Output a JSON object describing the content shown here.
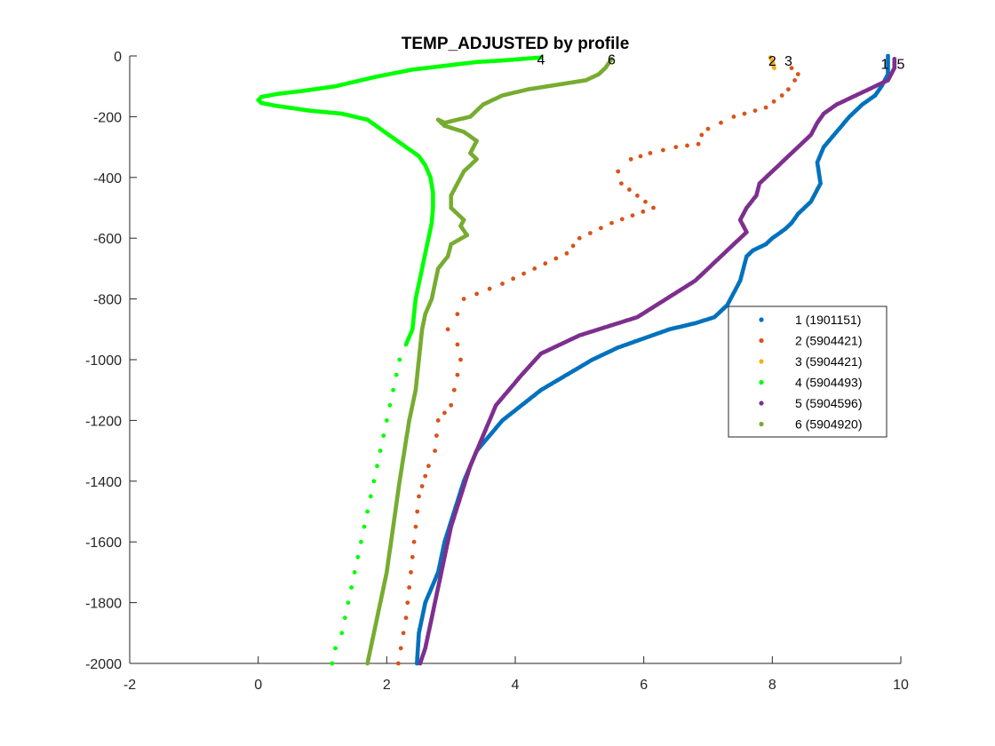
{
  "chart_data": {
    "type": "scatter",
    "title": "TEMP_ADJUSTED by profile",
    "xlabel": "",
    "ylabel": "",
    "xlim": [
      -2,
      10
    ],
    "ylim": [
      -2000,
      0
    ],
    "xticks": [
      -2,
      0,
      2,
      4,
      6,
      8,
      10
    ],
    "yticks": [
      0,
      -200,
      -400,
      -600,
      -800,
      -1000,
      -1200,
      -1400,
      -1600,
      -1800,
      -2000
    ],
    "grid": false,
    "legend_location": "east",
    "series": [
      {
        "name": "1 (1901151)",
        "label": "1",
        "color": "#0072BD",
        "label_pos": [
          9.75,
          -25
        ],
        "x": [
          9.8,
          9.8,
          9.8,
          9.7,
          9.6,
          9.4,
          9.2,
          9.0,
          8.8,
          8.7,
          8.75,
          8.6,
          8.5,
          8.4,
          8.3,
          8.2,
          8.0,
          7.9,
          7.7,
          7.6,
          7.55,
          7.5,
          7.4,
          7.3,
          7.1,
          6.8,
          6.4,
          6.0,
          5.6,
          5.2,
          4.8,
          4.4,
          4.1,
          3.8,
          3.6,
          3.4,
          3.2,
          3.05,
          2.9,
          2.8,
          2.7,
          2.6,
          2.55,
          2.5,
          2.47
        ],
        "y": [
          0,
          -30,
          -60,
          -100,
          -130,
          -160,
          -200,
          -250,
          -300,
          -350,
          -420,
          -480,
          -500,
          -520,
          -550,
          -570,
          -600,
          -620,
          -640,
          -660,
          -700,
          -740,
          -780,
          -820,
          -860,
          -880,
          -900,
          -930,
          -960,
          -1000,
          -1050,
          -1100,
          -1150,
          -1200,
          -1250,
          -1300,
          -1400,
          -1500,
          -1600,
          -1700,
          -1750,
          -1800,
          -1850,
          -1900,
          -2000
        ]
      },
      {
        "name": "2 (5904421)",
        "label": "2",
        "color": "#D95319",
        "label_pos": [
          8.0,
          -15
        ],
        "x": [
          8.3,
          8.4,
          8.35,
          8.25,
          8.15,
          7.9,
          7.4,
          7.0,
          6.9,
          6.85,
          6.5,
          6.1,
          5.8,
          5.6,
          5.65,
          5.9,
          6.15,
          5.5,
          5.0,
          4.8,
          4.3,
          3.8,
          3.2,
          3.1,
          2.95,
          3.1,
          3.15,
          3.1,
          3.05,
          3.0,
          2.8,
          2.75,
          2.65,
          2.5,
          2.45,
          2.4,
          2.35,
          2.3,
          2.22,
          2.18
        ],
        "y": [
          -40,
          -60,
          -80,
          -110,
          -130,
          -170,
          -200,
          -240,
          -260,
          -290,
          -300,
          -320,
          -340,
          -380,
          -420,
          -460,
          -500,
          -550,
          -600,
          -650,
          -700,
          -750,
          -800,
          -850,
          -900,
          -950,
          -1000,
          -1050,
          -1100,
          -1150,
          -1200,
          -1300,
          -1350,
          -1450,
          -1550,
          -1650,
          -1750,
          -1850,
          -1950,
          -2000
        ]
      },
      {
        "name": "3 (5904421)",
        "label": "3",
        "color": "#EDB120",
        "label_pos": [
          8.25,
          -15
        ],
        "x": [
          7.97,
          7.98,
          8.0,
          8.0,
          8.01,
          8.02,
          8.02,
          8.03
        ],
        "y": [
          -5,
          -10,
          -15,
          -20,
          -25,
          -30,
          -35,
          -40
        ]
      },
      {
        "name": "4 (5904493)",
        "label": "4",
        "color": "#00FF00",
        "label_pos": [
          4.4,
          -10
        ],
        "x": [
          4.4,
          4.1,
          3.8,
          3.4,
          3.0,
          2.4,
          1.8,
          1.2,
          0.7,
          0.3,
          0.05,
          0.0,
          0.05,
          0.3,
          0.8,
          1.3,
          1.7,
          1.9,
          2.1,
          2.3,
          2.5,
          2.6,
          2.68,
          2.72,
          2.72,
          2.7,
          2.65,
          2.55,
          2.45,
          2.4,
          2.3,
          2.2,
          2.1,
          2.0,
          1.9,
          1.8,
          1.7,
          1.6,
          1.5,
          1.4,
          1.3,
          1.2,
          1.15
        ],
        "y": [
          -5,
          -10,
          -15,
          -20,
          -30,
          -45,
          -70,
          -100,
          -115,
          -125,
          -135,
          -145,
          -155,
          -165,
          -180,
          -190,
          -210,
          -240,
          -270,
          -300,
          -330,
          -360,
          -400,
          -450,
          -500,
          -550,
          -600,
          -700,
          -800,
          -900,
          -950,
          -1000,
          -1100,
          -1200,
          -1300,
          -1400,
          -1500,
          -1600,
          -1700,
          -1800,
          -1900,
          -1950,
          -2000
        ]
      },
      {
        "name": "5 (5904596)",
        "label": "5",
        "color": "#7E2F8E",
        "label_pos": [
          10.0,
          -25
        ],
        "x": [
          9.9,
          9.9,
          9.8,
          9.6,
          9.3,
          9.0,
          8.8,
          8.7,
          8.6,
          8.4,
          8.2,
          8.0,
          7.8,
          7.75,
          7.6,
          7.5,
          7.6,
          7.4,
          7.2,
          7.0,
          6.8,
          6.5,
          6.2,
          5.9,
          5.6,
          5.3,
          5.0,
          4.7,
          4.4,
          4.1,
          3.9,
          3.7,
          3.5,
          3.3,
          3.15,
          3.0,
          2.9,
          2.8,
          2.7,
          2.6,
          2.52
        ],
        "y": [
          -10,
          -40,
          -80,
          -100,
          -130,
          -160,
          -190,
          -220,
          -260,
          -300,
          -340,
          -380,
          -420,
          -460,
          -500,
          -540,
          -580,
          -620,
          -660,
          -700,
          -740,
          -780,
          -820,
          -860,
          -880,
          -900,
          -920,
          -950,
          -980,
          -1050,
          -1100,
          -1150,
          -1250,
          -1350,
          -1450,
          -1550,
          -1650,
          -1750,
          -1850,
          -1950,
          -2000
        ]
      },
      {
        "name": "6 (5904920)",
        "label": "6",
        "color": "#77AC30",
        "label_pos": [
          5.5,
          -10
        ],
        "x": [
          5.5,
          5.4,
          5.3,
          5.1,
          4.8,
          4.5,
          4.2,
          4.0,
          3.8,
          3.6,
          3.5,
          3.4,
          3.3,
          3.1,
          2.9,
          2.8,
          2.9,
          3.2,
          3.4,
          3.3,
          3.4,
          3.2,
          3.1,
          3.0,
          3.0,
          3.2,
          3.15,
          3.25,
          3.0,
          2.95,
          2.8,
          2.75,
          2.7,
          2.6,
          2.55,
          2.5,
          2.45,
          2.35,
          2.2,
          2.1,
          2.0,
          1.9,
          1.8,
          1.7
        ],
        "y": [
          -10,
          -40,
          -60,
          -80,
          -90,
          -100,
          -110,
          -120,
          -130,
          -150,
          -160,
          -180,
          -200,
          -210,
          -220,
          -210,
          -230,
          -250,
          -280,
          -320,
          -340,
          -380,
          -420,
          -460,
          -500,
          -540,
          -560,
          -590,
          -620,
          -660,
          -700,
          -750,
          -800,
          -850,
          -900,
          -1000,
          -1100,
          -1200,
          -1400,
          -1550,
          -1700,
          -1800,
          -1900,
          -2000
        ]
      }
    ]
  }
}
